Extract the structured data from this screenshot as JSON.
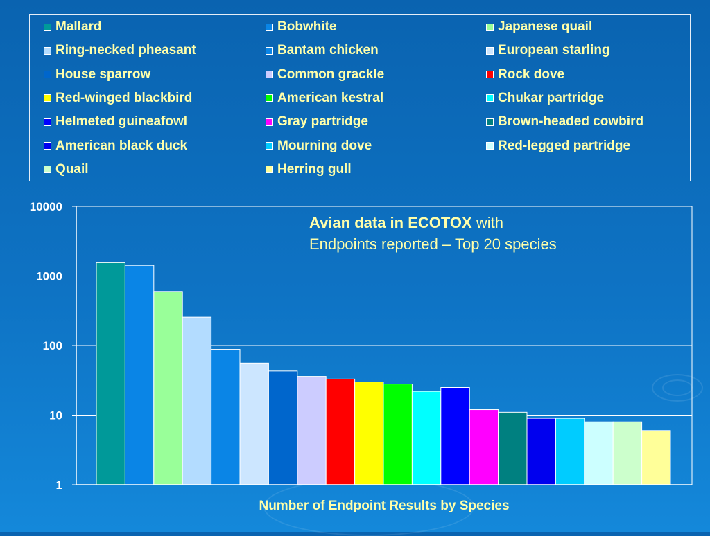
{
  "chart_data": {
    "type": "bar",
    "scale": "log",
    "ylim": [
      1,
      10000
    ],
    "yticks": [
      {
        "value": 1,
        "label": "1"
      },
      {
        "value": 10,
        "label": "10"
      },
      {
        "value": 100,
        "label": "100"
      },
      {
        "value": 1000,
        "label": "1000"
      },
      {
        "value": 10000,
        "label": "10000"
      }
    ],
    "title_bold": "Avian data in ECOTOX",
    "title_rest": " with",
    "subtitle": "Endpoints reported – Top 20 species",
    "xlabel": "Number of Endpoint Results by Species",
    "grid": true,
    "legend_position": "top",
    "series": [
      {
        "name": "Mallard",
        "value": 1550,
        "color": "#009999"
      },
      {
        "name": "Bobwhite",
        "value": 1420,
        "color": "#0a85e6"
      },
      {
        "name": "Japanese quail",
        "value": 600,
        "color": "#99ff99"
      },
      {
        "name": "Ring-necked pheasant",
        "value": 255,
        "color": "#b3dcff"
      },
      {
        "name": "Bantam chicken",
        "value": 88,
        "color": "#0a85e6"
      },
      {
        "name": "European starling",
        "value": 56,
        "color": "#cce6ff"
      },
      {
        "name": "House sparrow",
        "value": 43,
        "color": "#0066cc"
      },
      {
        "name": "Common grackle",
        "value": 36,
        "color": "#ccccff"
      },
      {
        "name": "Rock dove",
        "value": 33,
        "color": "#ff0000"
      },
      {
        "name": "Red-winged blackbird",
        "value": 30,
        "color": "#ffff00"
      },
      {
        "name": "American kestral",
        "value": 28,
        "color": "#00ff00"
      },
      {
        "name": "Chukar partridge",
        "value": 22,
        "color": "#00ffff"
      },
      {
        "name": "Helmeted guineafowl",
        "value": 25,
        "color": "#0000ff"
      },
      {
        "name": "Gray partridge",
        "value": 12,
        "color": "#ff00ff"
      },
      {
        "name": "Brown-headed cowbird",
        "value": 11,
        "color": "#008080"
      },
      {
        "name": "American black duck",
        "value": 9,
        "color": "#0000ee"
      },
      {
        "name": "Mourning dove",
        "value": 9,
        "color": "#00ccff"
      },
      {
        "name": "Red-legged partridge",
        "value": 8,
        "color": "#ccffff"
      },
      {
        "name": "Quail",
        "value": 8,
        "color": "#ccffcc"
      },
      {
        "name": "Herring gull",
        "value": 6,
        "color": "#ffff99"
      }
    ]
  }
}
